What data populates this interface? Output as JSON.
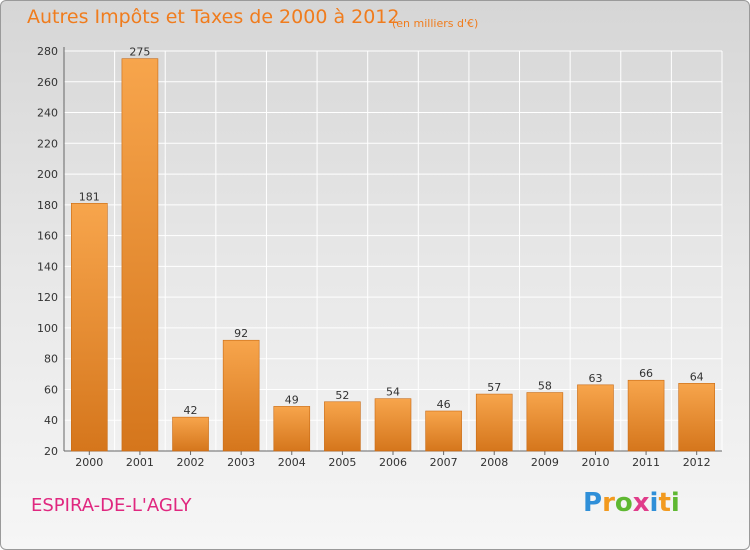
{
  "header": {
    "title": "Autres Impôts et Taxes de 2000 à 2012",
    "unit": "(en milliers d'€)"
  },
  "footer": {
    "location": "ESPIRA-DE-L'AGLY",
    "logo_text": "Proxiti",
    "logo_letters": [
      {
        "char": "P",
        "color": "#2f8fd8"
      },
      {
        "char": "r",
        "color": "#f29a1f"
      },
      {
        "char": "o",
        "color": "#5fb832"
      },
      {
        "char": "x",
        "color": "#e03c8a"
      },
      {
        "char": "i",
        "color": "#2f8fd8"
      },
      {
        "char": "t",
        "color": "#f29a1f"
      },
      {
        "char": "i",
        "color": "#5fb832"
      }
    ]
  },
  "colors": {
    "accent": "#f07c1d",
    "location": "#e0277f",
    "bar_light": "#f7a54c",
    "bar_dark": "#d5761c",
    "grid": "#ffffff",
    "tick_text": "#333333"
  },
  "chart_data": {
    "type": "bar",
    "title": "Autres Impôts et Taxes de 2000 à 2012",
    "subtitle": "(en milliers d'€)",
    "xlabel": "",
    "ylabel": "",
    "categories": [
      "2000",
      "2001",
      "2002",
      "2003",
      "2004",
      "2005",
      "2006",
      "2007",
      "2008",
      "2009",
      "2010",
      "2011",
      "2012"
    ],
    "values": [
      181,
      275,
      42,
      92,
      49,
      52,
      54,
      46,
      57,
      58,
      63,
      66,
      64
    ],
    "ylim": [
      20,
      280
    ],
    "yticks": [
      20,
      40,
      60,
      80,
      100,
      120,
      140,
      160,
      180,
      200,
      220,
      240,
      260,
      280
    ],
    "grid": true,
    "legend": "none"
  }
}
